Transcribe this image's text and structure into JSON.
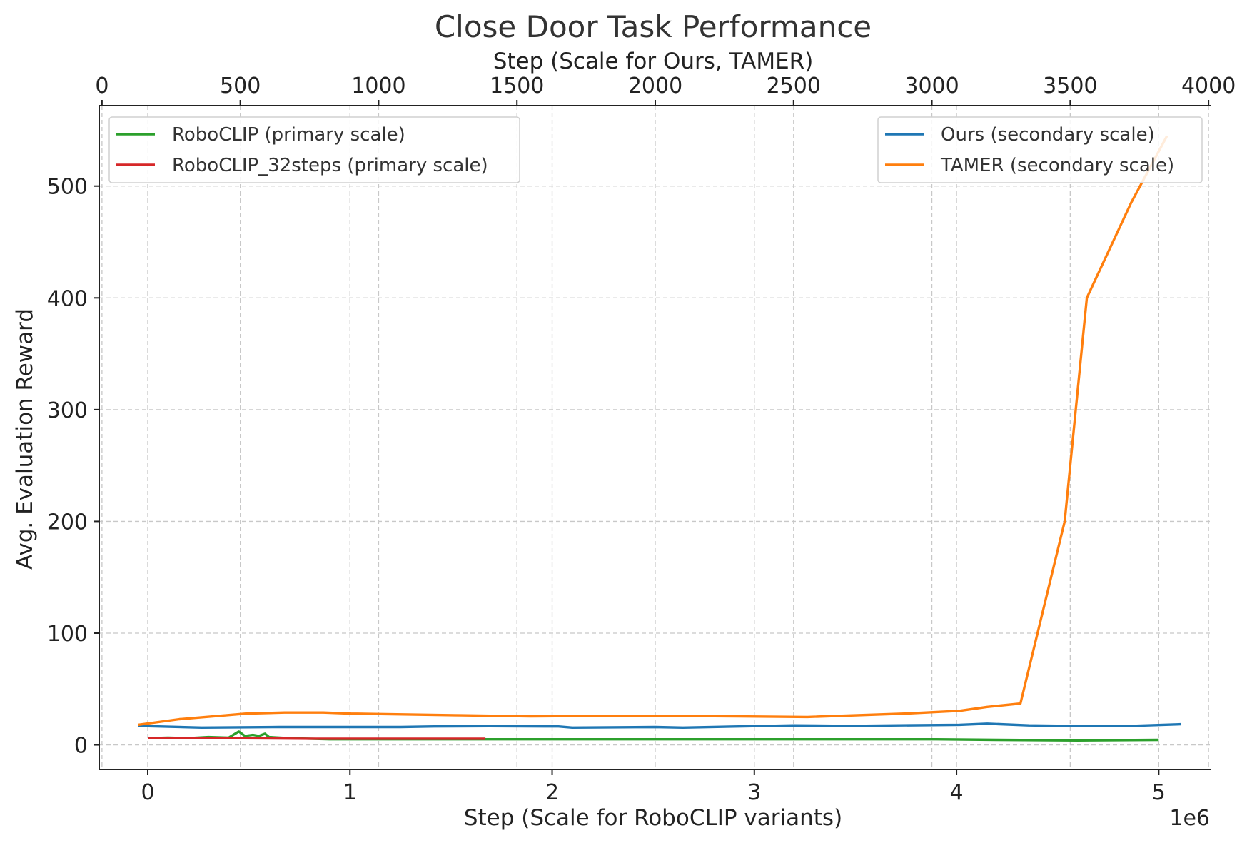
{
  "chart_data": {
    "type": "line",
    "title": "Close Door Task Performance",
    "ylabel": "Avg. Evaluation Reward",
    "ylim": [
      -22,
      572
    ],
    "yticks": [
      0,
      100,
      200,
      300,
      400,
      500
    ],
    "grid": true,
    "primary_x": {
      "label": "Step (Scale for RoboCLIP variants)",
      "lim": [
        -0.24,
        5.26
      ],
      "ticks": [
        0,
        1,
        2,
        3,
        4,
        5
      ],
      "offset_text": "1e6"
    },
    "secondary_x": {
      "label": "Step (Scale for Ours, TAMER)",
      "lim": [
        -10,
        4010
      ],
      "ticks": [
        0,
        500,
        1000,
        1500,
        2000,
        2500,
        3000,
        3500,
        4000
      ]
    },
    "legends": [
      {
        "placement": "top-left",
        "entries": [
          "RoboCLIP (primary scale)",
          "RoboCLIP_32steps (primary scale)"
        ]
      },
      {
        "placement": "top-right",
        "entries": [
          "Ours (secondary scale)",
          "TAMER (secondary scale)"
        ]
      }
    ],
    "series": [
      {
        "name": "RoboCLIP (primary scale)",
        "axis": "primary",
        "color": "#2ca02c",
        "points": [
          [
            0.0,
            6
          ],
          [
            0.1,
            6.5
          ],
          [
            0.2,
            6
          ],
          [
            0.3,
            7
          ],
          [
            0.4,
            6.5
          ],
          [
            0.45,
            12
          ],
          [
            0.48,
            8
          ],
          [
            0.52,
            9
          ],
          [
            0.55,
            8
          ],
          [
            0.58,
            10
          ],
          [
            0.6,
            7
          ],
          [
            0.7,
            6
          ],
          [
            0.9,
            5
          ],
          [
            1.2,
            5
          ],
          [
            1.6,
            5
          ],
          [
            2.0,
            5
          ],
          [
            2.5,
            5
          ],
          [
            3.0,
            5
          ],
          [
            3.5,
            5
          ],
          [
            3.9,
            5
          ],
          [
            4.2,
            4.5
          ],
          [
            4.6,
            4
          ],
          [
            5.0,
            4.5
          ]
        ]
      },
      {
        "name": "RoboCLIP_32steps (primary scale)",
        "axis": "primary",
        "color": "#d62728",
        "points": [
          [
            0.0,
            6
          ],
          [
            0.4,
            6
          ],
          [
            0.8,
            5.5
          ],
          [
            1.2,
            5.5
          ],
          [
            1.67,
            5.5
          ]
        ]
      },
      {
        "name": "Ours (secondary scale)",
        "axis": "secondary",
        "color": "#1f77b4",
        "points": [
          [
            130,
            17
          ],
          [
            360,
            15.5
          ],
          [
            640,
            16
          ],
          [
            1080,
            16
          ],
          [
            1200,
            16.5
          ],
          [
            1400,
            16.8
          ],
          [
            1650,
            16.5
          ],
          [
            1700,
            15.5
          ],
          [
            2000,
            16
          ],
          [
            2100,
            15.5
          ],
          [
            2400,
            17
          ],
          [
            2500,
            17.5
          ],
          [
            2700,
            17
          ],
          [
            3100,
            18
          ],
          [
            3200,
            19
          ],
          [
            3350,
            17.5
          ],
          [
            3500,
            17
          ],
          [
            3720,
            17
          ],
          [
            3900,
            18.5
          ]
        ]
      },
      {
        "name": "TAMER (secondary scale)",
        "axis": "secondary",
        "color": "#ff7f0e",
        "points": [
          [
            130,
            18
          ],
          [
            280,
            23
          ],
          [
            520,
            28
          ],
          [
            660,
            29
          ],
          [
            800,
            29
          ],
          [
            900,
            28
          ],
          [
            1300,
            26.5
          ],
          [
            1550,
            25.5
          ],
          [
            1800,
            26
          ],
          [
            2050,
            26
          ],
          [
            2300,
            25.5
          ],
          [
            2550,
            25
          ],
          [
            2900,
            28
          ],
          [
            3100,
            30.5
          ],
          [
            3200,
            34
          ],
          [
            3320,
            37
          ],
          [
            3480,
            200
          ],
          [
            3560,
            400
          ],
          [
            3720,
            485
          ],
          [
            3850,
            545
          ]
        ]
      }
    ]
  }
}
